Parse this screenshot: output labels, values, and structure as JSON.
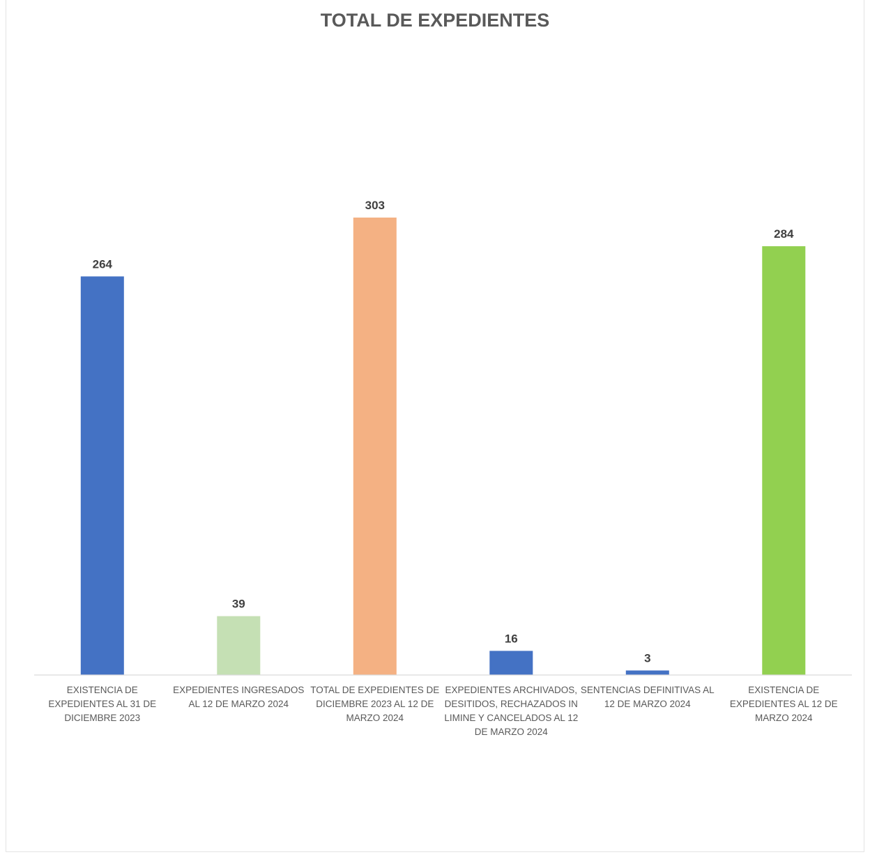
{
  "chart_data": {
    "type": "bar",
    "title": "TOTAL DE EXPEDIENTES",
    "categories": [
      "EXISTENCIA DE EXPEDIENTES AL 31 DE DICIEMBRE 2023",
      "EXPEDIENTES INGRESADOS AL 12 DE MARZO 2024",
      "TOTAL DE EXPEDIENTES DE DICIEMBRE 2023 AL 12 DE MARZO 2024",
      "EXPEDIENTES ARCHIVADOS, DESITIDOS, RECHAZADOS IN LIMINE Y CANCELADOS AL 12 DE MARZO 2024",
      "SENTENCIAS DEFINITIVAS AL 12 DE MARZO 2024",
      "EXISTENCIA DE EXPEDIENTES AL 12 DE MARZO  2024"
    ],
    "values": [
      264,
      39,
      303,
      16,
      3,
      284
    ],
    "data_labels": [
      "264",
      "39",
      "303",
      "16",
      "3",
      "284"
    ],
    "colors": [
      "#4472C4",
      "#C5E0B4",
      "#F4B183",
      "#4472C4",
      "#4472C4",
      "#92D050"
    ],
    "xlabel": "",
    "ylabel": "",
    "ylim": [
      0,
      303
    ],
    "grid": false,
    "legend": "none"
  }
}
